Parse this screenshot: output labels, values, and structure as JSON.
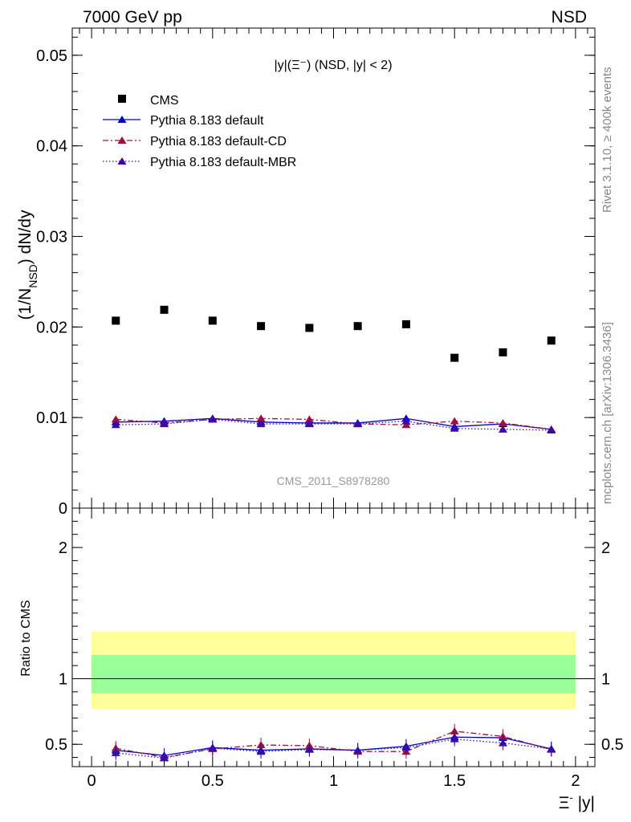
{
  "header": {
    "energy_label": "7000 GeV pp",
    "process_label": "NSD"
  },
  "side_labels": {
    "rivet": "Rivet 3.1.10, ≥ 400k events",
    "mcplots": "mcplots.cern.ch [arXiv:1306.3436]"
  },
  "colors": {
    "data": "#000000",
    "default": "#0000cc",
    "default_cd": "#a0103c",
    "default_mbr": "#3a0aa8",
    "band_inner": "#99ff99",
    "band_outer": "#ffff99",
    "watermark": "#999999"
  },
  "chart_data": [
    {
      "id": "main",
      "type": "scatter",
      "title": "|y|(Ξ⁻) (NSD, |y| < 2)",
      "ylabel": "(1/N_NSD) dN/dy",
      "ylabel_parts": {
        "a": "(1/N",
        "sub": "NSD",
        "b": ") dN/dy"
      },
      "xlabel": "",
      "xlim": [
        -0.08,
        2.08
      ],
      "ylim": [
        0,
        0.053
      ],
      "y_ticks": [
        0,
        0.01,
        0.02,
        0.03,
        0.04,
        0.05
      ],
      "y_tick_labels": [
        "0",
        "0.01",
        "0.02",
        "0.03",
        "0.04",
        "0.05"
      ],
      "watermark": "CMS_2011_S8978280",
      "legend": [
        {
          "label": "CMS",
          "style": "square",
          "series": "data"
        },
        {
          "label": "Pythia 8.183 default",
          "style": "solid",
          "series": "default"
        },
        {
          "label": "Pythia 8.183 default-CD",
          "style": "dashdot",
          "series": "default_cd"
        },
        {
          "label": "Pythia 8.183 default-MBR",
          "style": "dotted",
          "series": "default_mbr"
        }
      ],
      "x": [
        0.1,
        0.3,
        0.5,
        0.7,
        0.9,
        1.1,
        1.3,
        1.5,
        1.7,
        1.9
      ],
      "series": [
        {
          "name": "CMS",
          "key": "data",
          "values": [
            0.0207,
            0.0219,
            0.0207,
            0.0201,
            0.0199,
            0.0201,
            0.0203,
            0.0166,
            0.0172,
            0.0185
          ]
        },
        {
          "name": "Pythia 8.183 default",
          "key": "default",
          "values": [
            0.0095,
            0.0096,
            0.0099,
            0.0095,
            0.0094,
            0.0094,
            0.0099,
            0.009,
            0.0093,
            0.0087
          ]
        },
        {
          "name": "Pythia 8.183 default-CD",
          "key": "default_cd",
          "values": [
            0.0098,
            0.0094,
            0.0098,
            0.0099,
            0.0098,
            0.0093,
            0.0092,
            0.0096,
            0.0094,
            0.0087
          ]
        },
        {
          "name": "Pythia 8.183 default-MBR",
          "key": "default_mbr",
          "values": [
            0.0092,
            0.0093,
            0.0098,
            0.0093,
            0.0093,
            0.0093,
            0.0096,
            0.0088,
            0.0087,
            0.0086
          ]
        }
      ]
    },
    {
      "id": "ratio",
      "type": "line",
      "ylabel": "Ratio to CMS",
      "xlabel": "Ξ⁻ |y|",
      "xlabel_parts": {
        "sym": "Ξ",
        "sup": "-",
        "rest": " |y|"
      },
      "xlim": [
        -0.08,
        2.08
      ],
      "ylim": [
        0.33,
        2.3
      ],
      "x_ticks": [
        0,
        0.5,
        1,
        1.5,
        2
      ],
      "x_tick_labels": [
        "0",
        "0.5",
        "1",
        "1.5",
        "2"
      ],
      "y_ticks": [
        0.5,
        1,
        2
      ],
      "y_tick_labels": [
        "0.5",
        "1",
        "2"
      ],
      "band_inner": [
        0.89,
        1.18
      ],
      "band_outer": [
        0.77,
        1.36
      ],
      "x": [
        0.1,
        0.3,
        0.5,
        0.7,
        0.9,
        1.1,
        1.3,
        1.5,
        1.7,
        1.9
      ],
      "series": [
        {
          "name": "Pythia 8.183 default",
          "key": "default",
          "values": [
            0.455,
            0.415,
            0.475,
            0.455,
            0.465,
            0.455,
            0.485,
            0.555,
            0.55,
            0.465
          ]
        },
        {
          "name": "Pythia 8.183 default-CD",
          "key": "default_cd",
          "values": [
            0.47,
            0.4,
            0.465,
            0.495,
            0.49,
            0.445,
            0.445,
            0.6,
            0.56,
            0.46
          ]
        },
        {
          "name": "Pythia 8.183 default-MBR",
          "key": "default_mbr",
          "values": [
            0.435,
            0.395,
            0.47,
            0.445,
            0.46,
            0.455,
            0.475,
            0.54,
            0.51,
            0.465
          ]
        }
      ]
    }
  ]
}
